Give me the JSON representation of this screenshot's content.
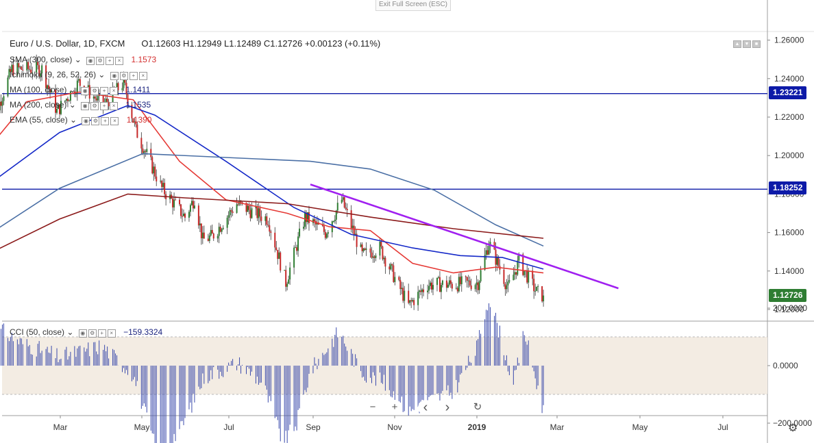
{
  "exit_fullscreen": "Exit Full Screen (ESC)",
  "header": {
    "symbol": "Euro / U.S. Dollar, 1D, FXCM",
    "ohlc": "O1.12603   H1.12949   L1.12489   C1.12726   +0.00123 (+0.11%)"
  },
  "indicators": [
    {
      "label": "SMA (300, close)",
      "value": "1.1573",
      "value_color": "#d32f2f"
    },
    {
      "label": "Ichimoku (9, 26, 52, 26)",
      "value": "",
      "value_color": "#333333"
    },
    {
      "label": "MA (100, close)",
      "value": "1.1411",
      "value_color": "#1a237e"
    },
    {
      "label": "MA (200, close)",
      "value": "1.1535",
      "value_color": "#1a237e"
    },
    {
      "label": "EMA (55, close)",
      "value": "1.1390",
      "value_color": "#d32f2f"
    }
  ],
  "cci_header": {
    "label": "CCI (50, close)",
    "value": "−159.3324"
  },
  "price_labels": [
    {
      "text": "1.23221",
      "color": "#0d1aa8"
    },
    {
      "text": "1.18252",
      "color": "#0d1aa8"
    },
    {
      "text": "1.12726",
      "color": "#2e7d32"
    }
  ],
  "zoom_controls": {
    "minus": "−",
    "plus": "+",
    "left": "‹",
    "right": "›",
    "reset": "↻"
  },
  "chart_data": {
    "type": "candlestick",
    "title": "Euro / U.S. Dollar, 1D, FXCM",
    "price_axis": {
      "ticks": [
        "1.26000",
        "1.24000",
        "1.22000",
        "1.20000",
        "1.18000",
        "1.16000",
        "1.14000",
        "1.12000"
      ],
      "range": [
        1.1135,
        1.2652
      ]
    },
    "time_axis": {
      "ticks": [
        "Mar",
        "May",
        "Jul",
        "Sep",
        "Nov",
        "2019",
        "Mar",
        "May",
        "Jul"
      ]
    },
    "horizontal_lines": [
      1.23221,
      1.18252
    ],
    "trendline": {
      "from": [
        "2018-09-01",
        1.185
      ],
      "to": [
        "2019-04-15",
        1.131
      ],
      "color": "#a020f0"
    },
    "last_close": 1.12726,
    "price_path": [
      [
        "2018-01-08",
        1.212
      ],
      [
        "2018-01-25",
        1.245
      ],
      [
        "2018-02-16",
        1.245
      ],
      [
        "2018-02-27",
        1.223
      ],
      [
        "2018-03-15",
        1.238
      ],
      [
        "2018-04-02",
        1.226
      ],
      [
        "2018-04-17",
        1.238
      ],
      [
        "2018-04-26",
        1.213
      ],
      [
        "2018-05-15",
        1.183
      ],
      [
        "2018-06-01",
        1.168
      ],
      [
        "2018-06-08",
        1.178
      ],
      [
        "2018-06-14",
        1.156
      ],
      [
        "2018-06-21",
        1.158
      ],
      [
        "2018-07-09",
        1.175
      ],
      [
        "2018-07-20",
        1.171
      ],
      [
        "2018-08-01",
        1.167
      ],
      [
        "2018-08-14",
        1.134
      ],
      [
        "2018-08-28",
        1.168
      ],
      [
        "2018-09-12",
        1.16
      ],
      [
        "2018-09-24",
        1.177
      ],
      [
        "2018-10-09",
        1.148
      ],
      [
        "2018-10-22",
        1.152
      ],
      [
        "2018-11-12",
        1.122
      ],
      [
        "2018-11-26",
        1.133
      ],
      [
        "2018-12-14",
        1.133
      ],
      [
        "2019-01-02",
        1.134
      ],
      [
        "2019-01-10",
        1.155
      ],
      [
        "2019-01-24",
        1.131
      ],
      [
        "2019-02-01",
        1.145
      ],
      [
        "2019-02-14",
        1.129
      ],
      [
        "2019-02-19",
        1.127
      ]
    ],
    "moving_averages": [
      {
        "name": "EMA 55",
        "color": "#e53935",
        "points": [
          [
            "2018-01-08",
            1.204
          ],
          [
            "2018-02-05",
            1.228
          ],
          [
            "2018-03-15",
            1.233
          ],
          [
            "2018-04-24",
            1.229
          ],
          [
            "2018-05-28",
            1.197
          ],
          [
            "2018-07-01",
            1.177
          ],
          [
            "2018-08-15",
            1.17
          ],
          [
            "2018-09-15",
            1.163
          ],
          [
            "2018-10-15",
            1.161
          ],
          [
            "2018-11-15",
            1.144
          ],
          [
            "2018-12-15",
            1.139
          ],
          [
            "2019-01-15",
            1.142
          ],
          [
            "2019-02-19",
            1.139
          ]
        ]
      },
      {
        "name": "MA 100",
        "color": "#1428c8",
        "points": [
          [
            "2018-01-08",
            1.185
          ],
          [
            "2018-03-01",
            1.212
          ],
          [
            "2018-04-20",
            1.226
          ],
          [
            "2018-05-10",
            1.221
          ],
          [
            "2018-07-01",
            1.197
          ],
          [
            "2018-08-20",
            1.173
          ],
          [
            "2018-10-01",
            1.159
          ],
          [
            "2018-11-15",
            1.152
          ],
          [
            "2018-12-20",
            1.148
          ],
          [
            "2019-01-20",
            1.147
          ],
          [
            "2019-02-19",
            1.141
          ]
        ]
      },
      {
        "name": "MA 200",
        "color": "#4a6fa5",
        "points": [
          [
            "2018-01-08",
            1.159
          ],
          [
            "2018-03-01",
            1.183
          ],
          [
            "2018-05-01",
            1.201
          ],
          [
            "2018-07-01",
            1.199
          ],
          [
            "2018-09-01",
            1.197
          ],
          [
            "2018-10-15",
            1.193
          ],
          [
            "2018-12-01",
            1.182
          ],
          [
            "2019-01-15",
            1.164
          ],
          [
            "2019-02-19",
            1.153
          ]
        ]
      },
      {
        "name": "SMA 300",
        "color": "#8b1a1a",
        "points": [
          [
            "2018-01-08",
            1.149
          ],
          [
            "2018-03-01",
            1.167
          ],
          [
            "2018-04-20",
            1.18
          ],
          [
            "2018-06-01",
            1.178
          ],
          [
            "2018-08-15",
            1.175
          ],
          [
            "2018-10-15",
            1.168
          ],
          [
            "2018-12-15",
            1.162
          ],
          [
            "2019-02-19",
            1.157
          ]
        ]
      }
    ],
    "cci": {
      "name": "CCI (50, close)",
      "axis_ticks": [
        "200.0000",
        "0.0000",
        "−200.0000"
      ],
      "band": [
        -100,
        100
      ],
      "path": [
        [
          "2018-01-08",
          150
        ],
        [
          "2018-02-01",
          80
        ],
        [
          "2018-03-01",
          30
        ],
        [
          "2018-04-01",
          70
        ],
        [
          "2018-04-24",
          -30
        ],
        [
          "2018-05-12",
          -310
        ],
        [
          "2018-05-29",
          -220
        ],
        [
          "2018-06-15",
          -40
        ],
        [
          "2018-07-10",
          10
        ],
        [
          "2018-07-28",
          -60
        ],
        [
          "2018-08-12",
          -270
        ],
        [
          "2018-08-22",
          -200
        ],
        [
          "2018-09-01",
          -20
        ],
        [
          "2018-09-22",
          120
        ],
        [
          "2018-10-08",
          -20
        ],
        [
          "2018-10-25",
          -60
        ],
        [
          "2018-11-12",
          -160
        ],
        [
          "2018-11-28",
          -120
        ],
        [
          "2018-12-15",
          -90
        ],
        [
          "2019-01-01",
          60
        ],
        [
          "2019-01-10",
          240
        ],
        [
          "2019-01-20",
          80
        ],
        [
          "2019-01-28",
          -70
        ],
        [
          "2019-02-05",
          120
        ],
        [
          "2019-02-19",
          -159
        ]
      ]
    }
  }
}
